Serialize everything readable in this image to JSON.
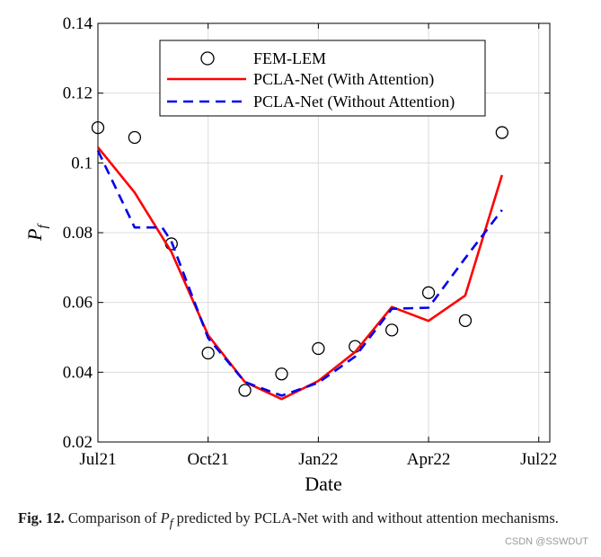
{
  "chart_data": {
    "type": "line",
    "title": "",
    "xlabel": "Date",
    "ylabel": "P",
    "ylabel_subscript": "f",
    "xlim": [
      0,
      12.3
    ],
    "ylim": [
      0.02,
      0.14
    ],
    "grid": true,
    "x_ticks": [
      {
        "value": 0,
        "label": "Jul21"
      },
      {
        "value": 3,
        "label": "Oct21"
      },
      {
        "value": 6,
        "label": "Jan22"
      },
      {
        "value": 9,
        "label": "Apr22"
      },
      {
        "value": 12,
        "label": "Jul22"
      }
    ],
    "y_ticks": [
      {
        "value": 0.02,
        "label": "0.02"
      },
      {
        "value": 0.04,
        "label": "0.04"
      },
      {
        "value": 0.06,
        "label": "0.06"
      },
      {
        "value": 0.08,
        "label": "0.08"
      },
      {
        "value": 0.1,
        "label": "0.1"
      },
      {
        "value": 0.12,
        "label": "0.12"
      },
      {
        "value": 0.14,
        "label": "0.14"
      }
    ],
    "legend_position": "top-center",
    "series": [
      {
        "name": "FEM-LEM",
        "kind": "markers",
        "color": "#000000",
        "x": [
          0,
          1,
          2,
          3,
          4,
          5,
          6,
          7,
          8,
          9,
          10,
          11
        ],
        "y": [
          0.1101,
          0.1073,
          0.0768,
          0.0455,
          0.0348,
          0.0395,
          0.0468,
          0.0474,
          0.0521,
          0.0628,
          0.0548,
          0.1087
        ]
      },
      {
        "name": "PCLA-Net (With Attention)",
        "kind": "line",
        "color": "#ff0000",
        "dash": "solid",
        "x": [
          0,
          1,
          2,
          3,
          4,
          5,
          6,
          7,
          8,
          9,
          10,
          11
        ],
        "y": [
          0.1045,
          0.0915,
          0.0745,
          0.0506,
          0.0372,
          0.0323,
          0.0375,
          0.0458,
          0.0587,
          0.0547,
          0.062,
          0.0965
        ]
      },
      {
        "name": "PCLA-Net (Without Attention)",
        "kind": "line",
        "color": "#0000ee",
        "dash": "dashed",
        "x": [
          0,
          1,
          1.75,
          2,
          3,
          4,
          5,
          6,
          7,
          8,
          9,
          10,
          11
        ],
        "y": [
          0.1035,
          0.0815,
          0.0815,
          0.0775,
          0.0498,
          0.0372,
          0.0333,
          0.037,
          0.0445,
          0.0582,
          0.0585,
          0.0727,
          0.0865
        ]
      }
    ]
  },
  "caption": {
    "fig_label": "Fig. 12.",
    "text_before": "Comparison of ",
    "symbol_main": "P",
    "symbol_sub": "f",
    "text_after": " predicted by PCLA-Net with and without attention mechanisms."
  },
  "watermark": "CSDN @SSWDUT"
}
